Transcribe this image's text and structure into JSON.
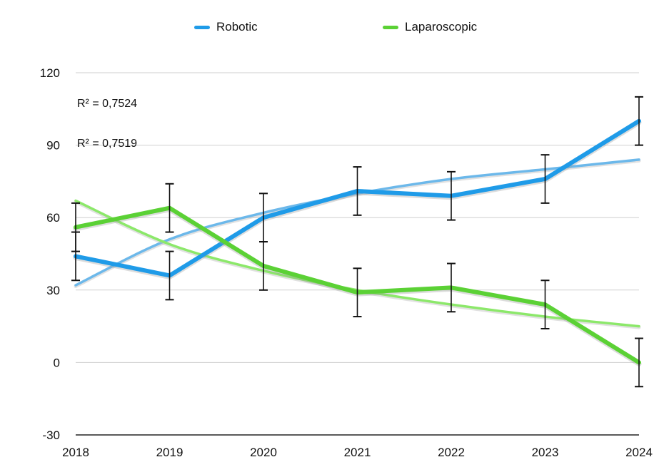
{
  "chart_data": {
    "type": "line",
    "title": "",
    "xlabel": "",
    "ylabel": "",
    "categories": [
      "2018",
      "2019",
      "2020",
      "2021",
      "2022",
      "2023",
      "2024"
    ],
    "ylim": [
      -30,
      120
    ],
    "yticks": [
      -30,
      0,
      30,
      60,
      90,
      120
    ],
    "grid": true,
    "legend_position": "top-center",
    "series": [
      {
        "name": "Robotic",
        "color": "#1f9be8",
        "values": [
          44,
          36,
          60,
          71,
          69,
          76,
          100
        ],
        "error": [
          10,
          10,
          10,
          10,
          10,
          10,
          10
        ],
        "trendline": {
          "type": "logarithmic",
          "values": [
            32,
            51,
            62,
            70,
            76,
            80,
            84
          ],
          "color": "#6cb8ea",
          "r2_label": "R² = 0,7524"
        }
      },
      {
        "name": "Laparoscopic",
        "color": "#5bd135",
        "values": [
          56,
          64,
          40,
          29,
          31,
          24,
          0
        ],
        "error": [
          10,
          10,
          10,
          10,
          10,
          10,
          10
        ],
        "trendline": {
          "type": "exponential",
          "values": [
            67,
            49,
            38,
            30,
            24,
            19,
            15
          ],
          "color": "#8ce86a",
          "r2_label": "R² = 0,7519"
        }
      }
    ]
  }
}
